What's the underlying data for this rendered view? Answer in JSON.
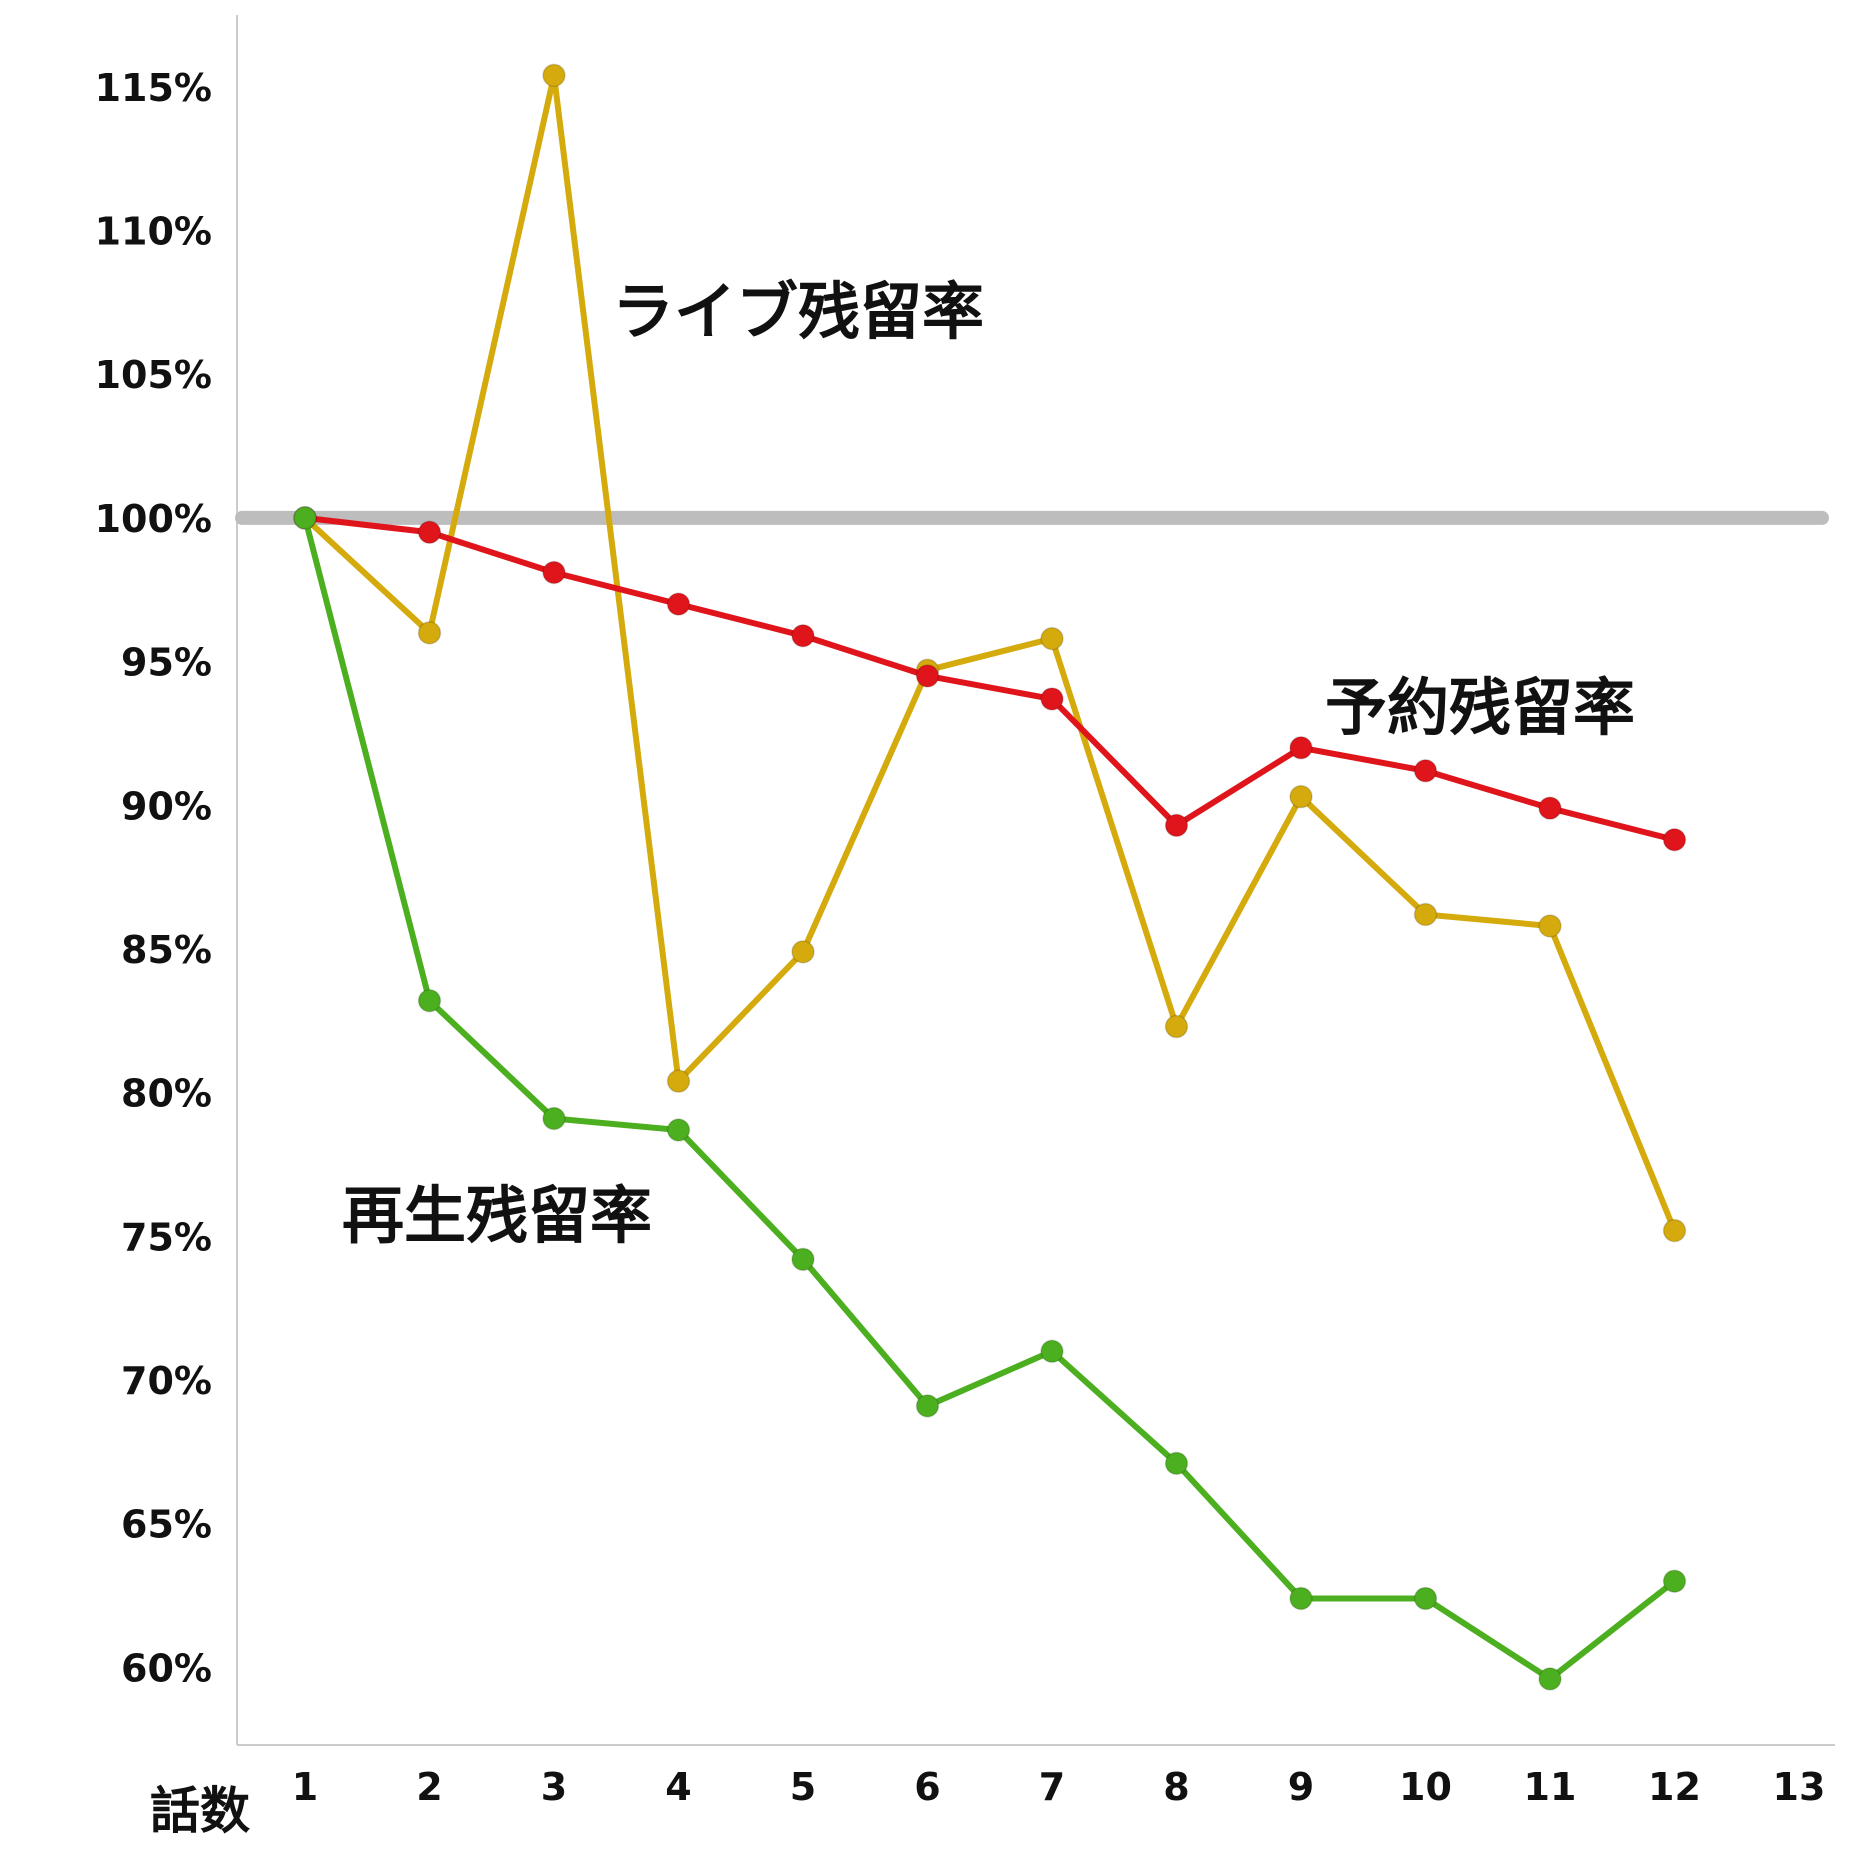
{
  "chart_data": {
    "type": "line",
    "xlabel": "話数",
    "ylabel": "",
    "x": [
      1,
      2,
      3,
      4,
      5,
      6,
      7,
      8,
      9,
      10,
      11,
      12
    ],
    "x_ticks": [
      "1",
      "2",
      "3",
      "4",
      "5",
      "6",
      "7",
      "8",
      "9",
      "10",
      "11",
      "12",
      "13"
    ],
    "xlim": [
      0.45,
      13.4
    ],
    "y_ticks": [
      "115%",
      "110%",
      "105%",
      "100%",
      "95%",
      "90%",
      "85%",
      "80%",
      "75%",
      "70%",
      "65%",
      "60%"
    ],
    "y_tick_values": [
      115,
      110,
      105,
      100,
      95,
      90,
      85,
      80,
      75,
      70,
      65,
      60
    ],
    "ylim": [
      57.3,
      117.5
    ],
    "reference_line": {
      "y": 100,
      "color": "#bdbdbd"
    },
    "grid": false,
    "series": [
      {
        "name": "ライブ残留率",
        "color": "#d4aa0c",
        "values": [
          100,
          96.0,
          115.4,
          80.4,
          84.9,
          94.7,
          95.8,
          82.3,
          90.3,
          86.2,
          85.8,
          75.2
        ]
      },
      {
        "name": "予約残留率",
        "color": "#e0151b",
        "values": [
          100,
          99.5,
          98.1,
          97.0,
          95.9,
          94.5,
          93.7,
          89.3,
          92.0,
          91.2,
          89.9,
          88.8
        ]
      },
      {
        "name": "再生残留率",
        "color": "#4caf1f",
        "values": [
          100,
          83.2,
          79.1,
          78.7,
          74.2,
          69.1,
          71.0,
          67.1,
          62.4,
          62.4,
          59.6,
          63.0
        ]
      }
    ]
  }
}
